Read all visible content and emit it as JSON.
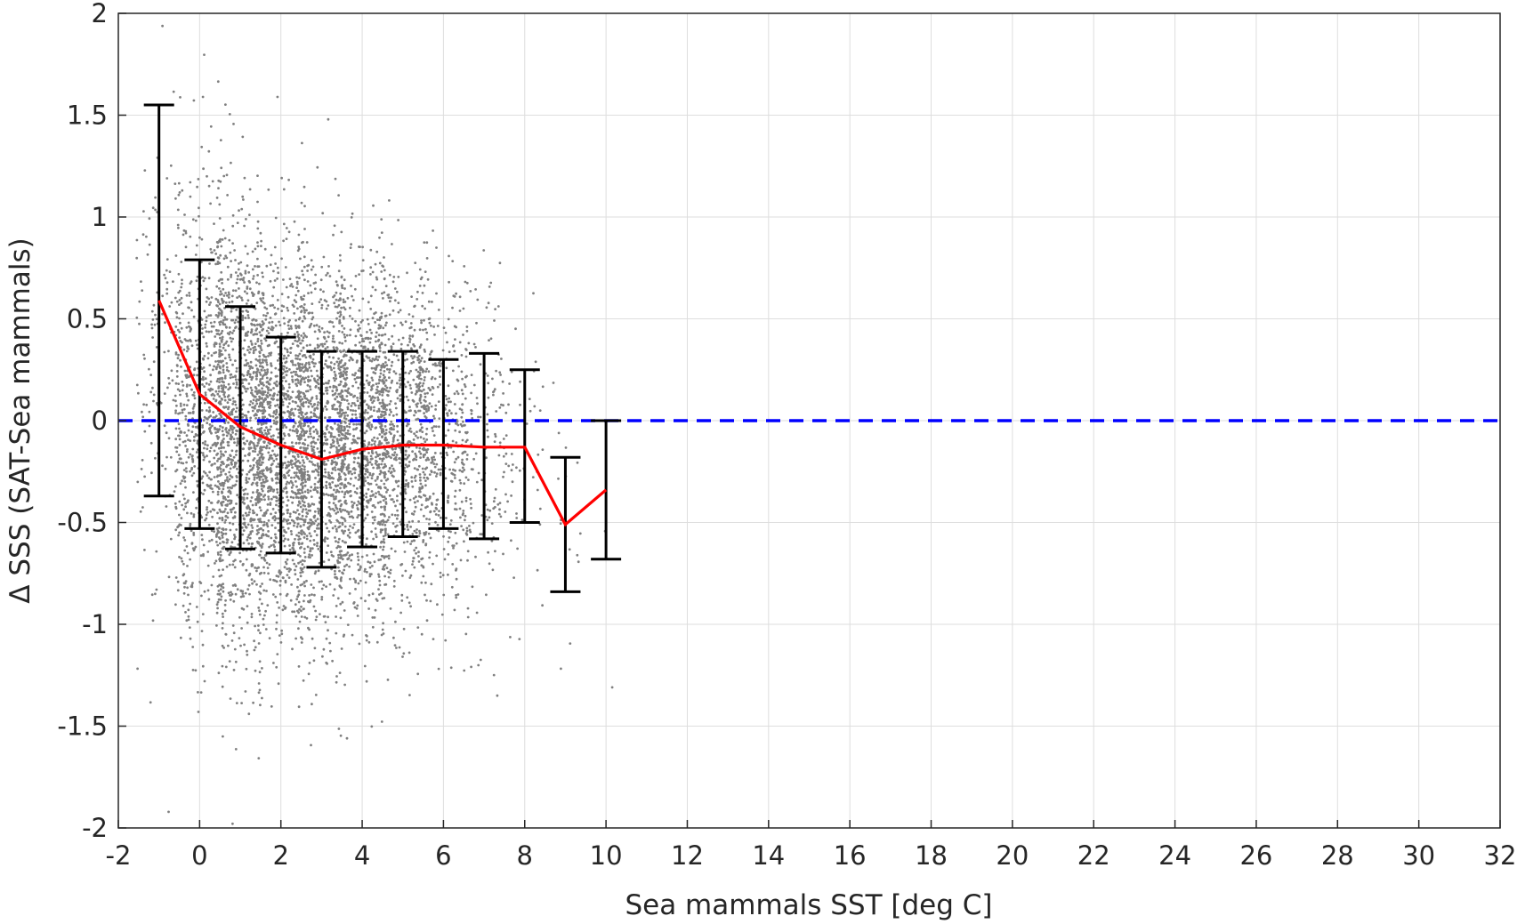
{
  "chart_data": {
    "type": "scatter",
    "xlabel": "Sea mammals SST [deg C]",
    "ylabel": "Δ SSS (SAT-Sea mammals)",
    "xlim": [
      -2,
      32
    ],
    "ylim": [
      -2,
      2
    ],
    "x_ticks": [
      -2,
      0,
      2,
      4,
      6,
      8,
      10,
      12,
      14,
      16,
      18,
      20,
      22,
      24,
      26,
      28,
      30,
      32
    ],
    "y_ticks": [
      -2,
      -1.5,
      -1,
      -0.5,
      0,
      0.5,
      1,
      1.5,
      2
    ],
    "grid": true,
    "colors": {
      "scatter": "#808080",
      "mean_line": "#ff0000",
      "error_bars": "#000000",
      "zero_line": "#0000ff"
    },
    "scatter_clusters": [
      {
        "x_center": -1,
        "x_spread": 0.55,
        "y_mean": 0.3,
        "y_sd": 0.55,
        "count": 130
      },
      {
        "x_center": 0,
        "x_spread": 0.6,
        "y_mean": 0.05,
        "y_sd": 0.55,
        "count": 700
      },
      {
        "x_center": 1,
        "x_spread": 0.6,
        "y_mean": -0.05,
        "y_sd": 0.5,
        "count": 1100
      },
      {
        "x_center": 2,
        "x_spread": 0.6,
        "y_mean": -0.1,
        "y_sd": 0.45,
        "count": 1100
      },
      {
        "x_center": 3,
        "x_spread": 0.6,
        "y_mean": -0.15,
        "y_sd": 0.45,
        "count": 1000
      },
      {
        "x_center": 4,
        "x_spread": 0.6,
        "y_mean": -0.12,
        "y_sd": 0.42,
        "count": 900
      },
      {
        "x_center": 5,
        "x_spread": 0.6,
        "y_mean": -0.1,
        "y_sd": 0.4,
        "count": 650
      },
      {
        "x_center": 6,
        "x_spread": 0.6,
        "y_mean": -0.1,
        "y_sd": 0.38,
        "count": 380
      },
      {
        "x_center": 7,
        "x_spread": 0.55,
        "y_mean": -0.12,
        "y_sd": 0.4,
        "count": 160
      },
      {
        "x_center": 8,
        "x_spread": 0.45,
        "y_mean": -0.2,
        "y_sd": 0.35,
        "count": 45
      },
      {
        "x_center": 9,
        "x_spread": 0.4,
        "y_mean": -0.45,
        "y_sd": 0.35,
        "count": 14
      },
      {
        "x_center": 10,
        "x_spread": 0.2,
        "y_mean": -0.7,
        "y_sd": 0.4,
        "count": 2
      }
    ],
    "series": [
      {
        "name": "",
        "type": "line_with_errorbars",
        "x": [
          -1,
          0,
          1,
          2,
          3,
          4,
          5,
          6,
          7,
          8,
          9,
          10
        ],
        "y": [
          0.59,
          0.13,
          -0.03,
          -0.12,
          -0.19,
          -0.14,
          -0.12,
          -0.12,
          -0.13,
          -0.13,
          -0.51,
          -0.34
        ],
        "err_low": [
          -0.37,
          -0.53,
          -0.63,
          -0.65,
          -0.72,
          -0.62,
          -0.57,
          -0.53,
          -0.58,
          -0.5,
          -0.84,
          -0.68
        ],
        "err_high": [
          1.55,
          0.79,
          0.56,
          0.41,
          0.34,
          0.34,
          0.34,
          0.3,
          0.33,
          0.25,
          -0.18,
          0.0
        ]
      }
    ],
    "reference_line": {
      "y": 0,
      "style": "dashed"
    }
  }
}
